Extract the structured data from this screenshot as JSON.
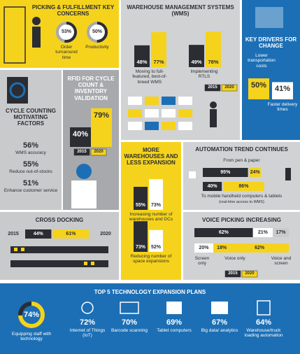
{
  "picking": {
    "title": "PICKING & FULFILLMENT KEY CONCERNS",
    "items": [
      {
        "value": 53,
        "value_label": "53%",
        "label": "Order turnaround time"
      },
      {
        "value": 50,
        "value_label": "50%",
        "label": "Productivity"
      }
    ]
  },
  "wms": {
    "title": "WAREHOUSE MANAGEMENT SYSTEMS (WMS)",
    "legend": [
      "2015",
      "2020"
    ],
    "colors": [
      "#2b2d33",
      "#f5d31c"
    ],
    "groups": [
      {
        "label": "Moving to full-featured, best-of-breed WMS",
        "values": [
          48,
          77
        ],
        "value_labels": [
          "48%",
          "77%"
        ]
      },
      {
        "label": "Implementing RTLS",
        "values": [
          49,
          78
        ],
        "value_labels": [
          "49%",
          "78%"
        ]
      }
    ]
  },
  "drivers": {
    "title": "KEY DRIVERS FOR CHANGE",
    "items": [
      {
        "label": "Lower transportation costs",
        "value": 50,
        "value_label": "50%",
        "color": "#f5d31c"
      },
      {
        "label": "Faster delivery times",
        "value": 41,
        "value_label": "41%",
        "color": "#ffffff"
      }
    ]
  },
  "cycle": {
    "title": "CYCLE COUNTING MOTIVATING FACTORS",
    "items": [
      {
        "value_label": "56%",
        "label": "WMS accuracy"
      },
      {
        "value_label": "55%",
        "label": "Reduce out-of-stocks"
      },
      {
        "value_label": "51%",
        "label": "Enhance customer service"
      }
    ]
  },
  "rfid": {
    "title": "RFID FOR CYCLE COUNT & INVENTORY VALIDATION",
    "legend": [
      "2015",
      "2020"
    ],
    "colors": [
      "#2b2d33",
      "#f5d31c"
    ],
    "values": [
      40,
      79
    ],
    "value_labels": [
      "40%",
      "79%"
    ]
  },
  "expansion": {
    "title": "MORE WAREHOUSES AND LESS EXPANSION",
    "colors": [
      "#2b2d33",
      "#ffffff"
    ],
    "groups": [
      {
        "label": "Increasing number of warehouses and DCs",
        "values": [
          55,
          73
        ],
        "value_labels": [
          "55%",
          "73%"
        ]
      },
      {
        "label": "Reducing number of space expansions",
        "values": [
          73,
          52
        ],
        "value_labels": [
          "73%",
          "52%"
        ]
      }
    ]
  },
  "automation": {
    "title": "AUTOMATION TREND CONTINUES",
    "colors": [
      "#2b2d33",
      "#f5d31c"
    ],
    "rows": [
      {
        "label": "From pen & paper",
        "values": [
          95,
          24
        ],
        "value_labels": [
          "95%",
          "24%"
        ]
      },
      {
        "label": "To mobile handheld computers & tablets",
        "note": "(real-time access to WMS)",
        "values": [
          40,
          86
        ],
        "value_labels": [
          "40%",
          "86%"
        ]
      }
    ]
  },
  "cross": {
    "title": "CROSS DOCKING",
    "years": [
      "2015",
      "2020"
    ],
    "colors": [
      "#2b2d33",
      "#f5d31c"
    ],
    "values": [
      44,
      61
    ],
    "value_labels": [
      "44%",
      "61%"
    ]
  },
  "voice": {
    "title": "VOICE PICKING INCREASING",
    "categories": [
      "Screen only",
      "Voice only",
      "Voice and screen"
    ],
    "series": [
      {
        "name": "2015",
        "color": "#2b2d33",
        "colors": [
          "#2b2d33",
          "#ffffff",
          "#c9cacc"
        ],
        "values": [
          62,
          21,
          17
        ],
        "value_labels": [
          "62%",
          "21%",
          "17%"
        ]
      },
      {
        "name": "2020",
        "color": "#f5d31c",
        "colors": [
          "#ffffff",
          "#f5d31c",
          "#f5d31c"
        ],
        "values": [
          20,
          18,
          62
        ],
        "value_labels": [
          "20%",
          "18%",
          "62%"
        ]
      }
    ]
  },
  "top5": {
    "title": "TOP 5 TECHNOLOGY EXPANSION PLANS",
    "lead": {
      "value": 74,
      "value_label": "74%",
      "label": "Equipping staff with technology"
    },
    "items": [
      {
        "value_label": "72%",
        "label": "Internet of Things (IoT)"
      },
      {
        "value_label": "70%",
        "label": "Barcode scanning"
      },
      {
        "value_label": "69%",
        "label": "Tablet computers"
      },
      {
        "value_label": "67%",
        "label": "Big data/ analytics"
      },
      {
        "value_label": "64%",
        "label": "Warehouse/truck loading automation"
      }
    ]
  }
}
